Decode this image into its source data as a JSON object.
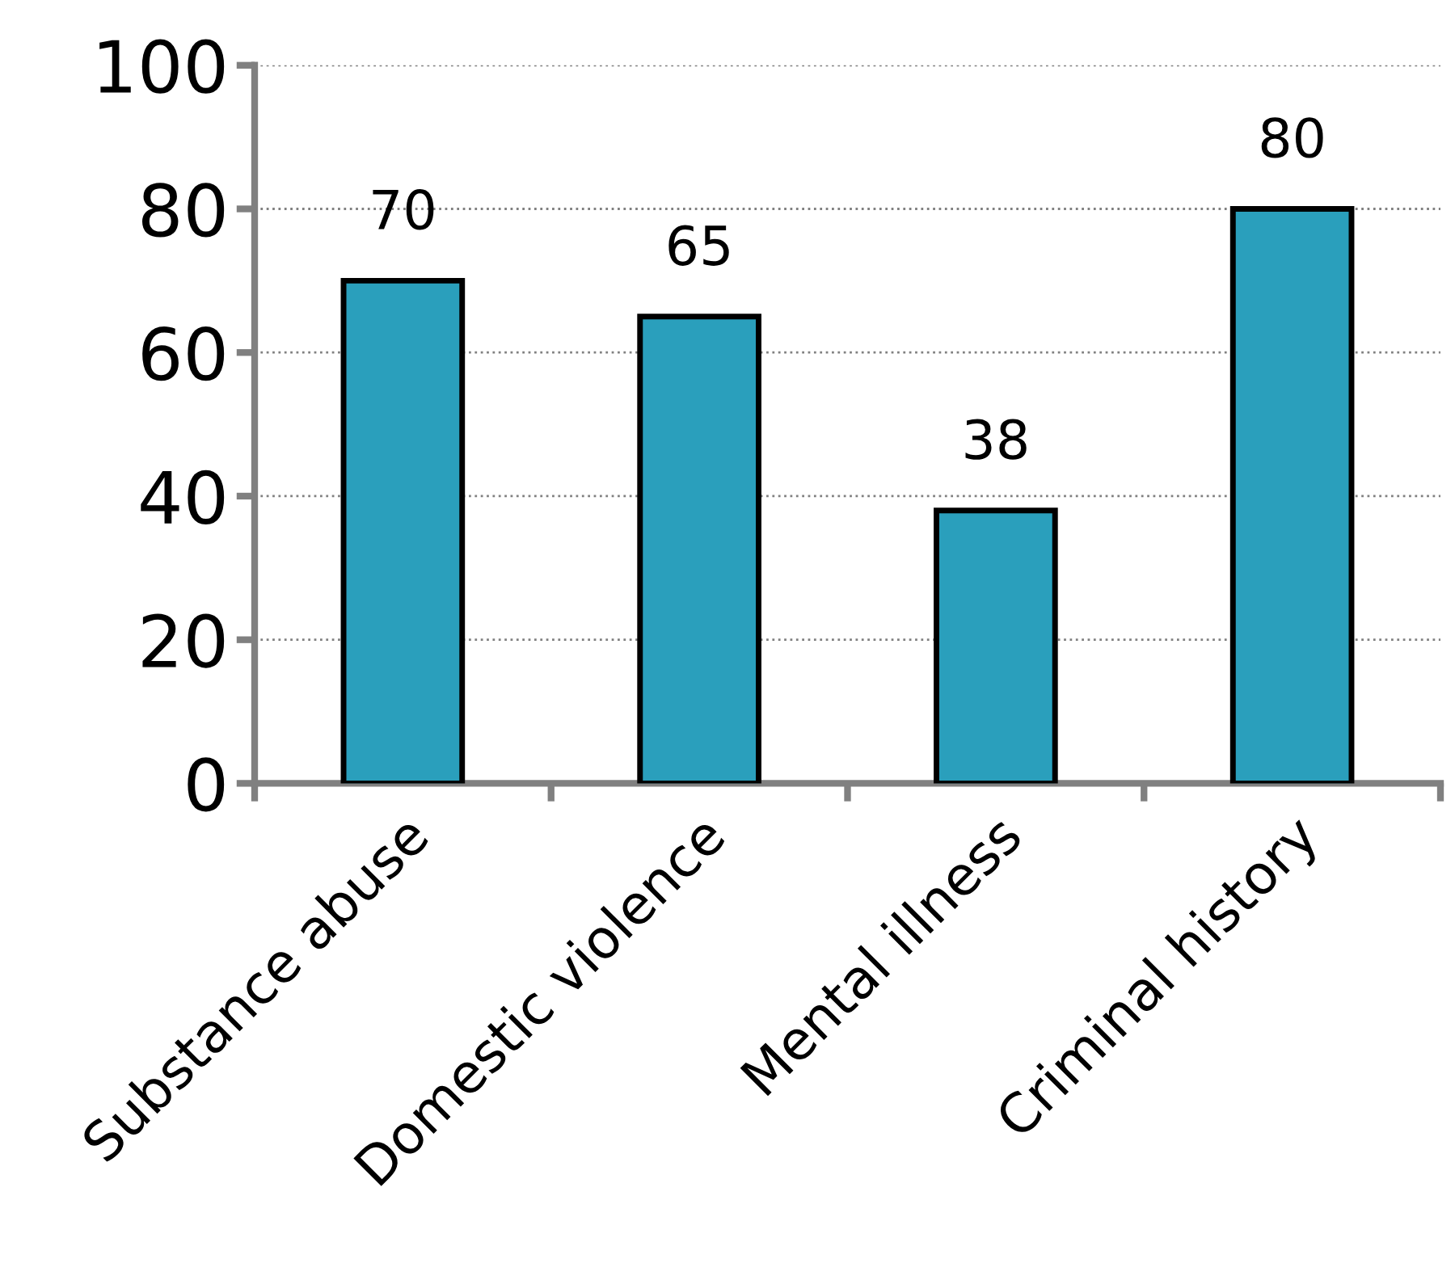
{
  "chart_data": {
    "type": "bar",
    "categories": [
      "Substance abuse",
      "Domestic violence",
      "Mental illness",
      "Criminal history"
    ],
    "values": [
      70,
      65,
      38,
      80
    ],
    "color": "#2a9fbc",
    "ylim": [
      0,
      100
    ],
    "yticks": [
      0,
      20,
      40,
      60,
      80,
      100
    ],
    "grid": "y",
    "data_labels": true
  }
}
